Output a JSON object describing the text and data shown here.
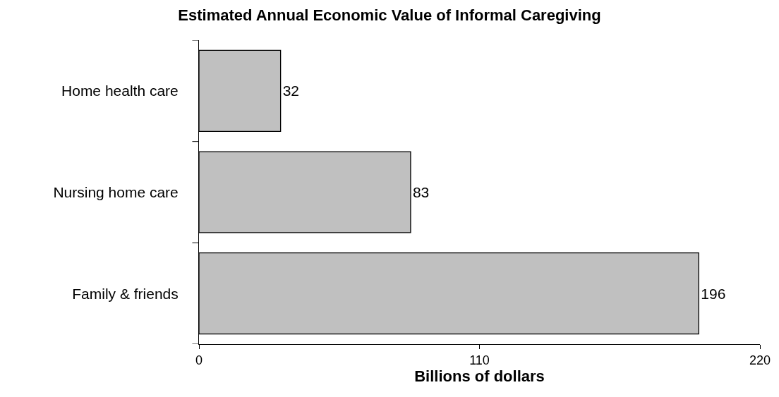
{
  "chart_data": {
    "type": "bar",
    "orientation": "horizontal",
    "title": "Estimated Annual Economic Value of Informal Caregiving",
    "xlabel": "Billions of dollars",
    "categories": [
      "Home health care",
      "Nursing home care",
      "Family & friends"
    ],
    "values": [
      32,
      83,
      196
    ],
    "color": "#c0c0c0",
    "xlim": [
      0,
      220
    ],
    "xticks": [
      0,
      110,
      220
    ],
    "data_labels": true
  }
}
